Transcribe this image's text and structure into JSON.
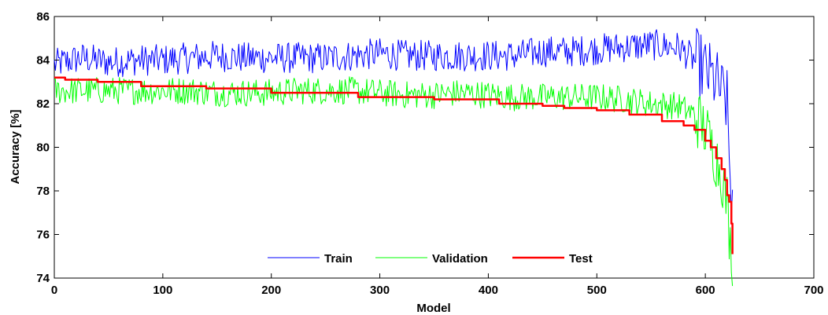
{
  "chart_data": {
    "type": "line",
    "xlabel": "Model",
    "ylabel": "Accuracy [%]",
    "xlim": [
      0,
      700
    ],
    "ylim": [
      74,
      86
    ],
    "xticks": [
      0,
      100,
      200,
      300,
      400,
      500,
      600,
      700
    ],
    "yticks": [
      74,
      76,
      78,
      80,
      82,
      84,
      86
    ],
    "legend_position": "bottom-center",
    "grid": false,
    "series": [
      {
        "name": "Train",
        "color": "#0000ff",
        "x": [
          0,
          25,
          50,
          75,
          100,
          125,
          150,
          175,
          200,
          225,
          250,
          275,
          300,
          325,
          350,
          375,
          400,
          425,
          450,
          475,
          500,
          525,
          550,
          575,
          590,
          600,
          610,
          615,
          620,
          623,
          625
        ],
        "y": [
          83.8,
          84.1,
          83.9,
          84.0,
          84.0,
          84.1,
          84.2,
          84.1,
          84.1,
          84.1,
          84.1,
          84.2,
          84.3,
          84.2,
          84.2,
          84.2,
          84.2,
          84.2,
          84.4,
          84.4,
          84.5,
          84.6,
          84.7,
          84.6,
          84.0,
          83.5,
          83.0,
          82.5,
          82.0,
          78.5,
          77.5
        ],
        "noise": 0.45
      },
      {
        "name": "Validation",
        "color": "#00ff00",
        "x": [
          0,
          25,
          50,
          75,
          100,
          125,
          150,
          175,
          200,
          225,
          250,
          275,
          300,
          325,
          350,
          375,
          400,
          425,
          450,
          475,
          500,
          525,
          550,
          575,
          590,
          600,
          610,
          615,
          620,
          623,
          625
        ],
        "y": [
          82.6,
          82.6,
          82.6,
          82.6,
          82.6,
          82.6,
          82.5,
          82.5,
          82.5,
          82.6,
          82.6,
          82.6,
          82.5,
          82.4,
          82.4,
          82.5,
          82.4,
          82.3,
          82.3,
          82.3,
          82.3,
          82.2,
          82.0,
          81.9,
          81.5,
          80.8,
          79.5,
          78.8,
          77.5,
          75.5,
          75.0
        ],
        "noise": 0.4
      },
      {
        "name": "Test",
        "color": "#ff0000",
        "x": [
          0,
          10,
          40,
          80,
          130,
          140,
          200,
          280,
          350,
          410,
          450,
          470,
          500,
          530,
          560,
          580,
          590,
          600,
          605,
          610,
          615,
          618,
          620,
          622,
          624,
          625
        ],
        "y": [
          83.2,
          83.1,
          83.0,
          82.8,
          82.8,
          82.7,
          82.5,
          82.3,
          82.2,
          82.0,
          81.9,
          81.8,
          81.7,
          81.5,
          81.2,
          81.0,
          80.8,
          80.3,
          80.0,
          79.5,
          79.0,
          78.5,
          77.8,
          77.5,
          76.5,
          75.1
        ],
        "noise": 0
      }
    ]
  }
}
